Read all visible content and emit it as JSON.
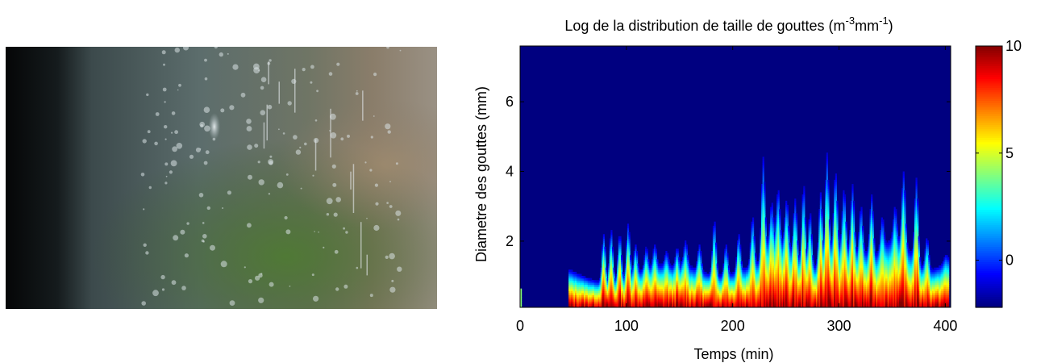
{
  "photo": {
    "subject": "rain-window-photo"
  },
  "chart_data": {
    "type": "heatmap",
    "title": "Log de la distribution de taille de gouttes (m",
    "title_sup1": "-3",
    "title_mid": "mm",
    "title_sup2": "-1",
    "title_end": ")",
    "xlabel": "Temps (min)",
    "ylabel": "Diametre des gouttes (mm)",
    "xlim": [
      0,
      405
    ],
    "ylim": [
      0.1,
      7.6
    ],
    "xticks": [
      0,
      100,
      200,
      300,
      400
    ],
    "yticks": [
      2,
      4,
      6
    ],
    "colorbar": {
      "min": -2.2,
      "max": 10,
      "ticks": [
        0,
        5,
        10
      ],
      "colormap": "jet"
    },
    "background_value": -2.2,
    "rain_start_min": 45,
    "rain_end_min": 403,
    "spikes": [
      {
        "x": 78,
        "d": 2.2
      },
      {
        "x": 85,
        "d": 2.3
      },
      {
        "x": 93,
        "d": 2.2
      },
      {
        "x": 101,
        "d": 2.5
      },
      {
        "x": 108,
        "d": 1.9
      },
      {
        "x": 118,
        "d": 1.8
      },
      {
        "x": 126,
        "d": 1.9
      },
      {
        "x": 137,
        "d": 1.7
      },
      {
        "x": 147,
        "d": 1.8
      },
      {
        "x": 155,
        "d": 2.0
      },
      {
        "x": 168,
        "d": 1.9
      },
      {
        "x": 182,
        "d": 2.6
      },
      {
        "x": 193,
        "d": 1.9
      },
      {
        "x": 205,
        "d": 2.2
      },
      {
        "x": 218,
        "d": 2.7
      },
      {
        "x": 228,
        "d": 4.4
      },
      {
        "x": 236,
        "d": 3.1
      },
      {
        "x": 242,
        "d": 3.5
      },
      {
        "x": 250,
        "d": 3.2
      },
      {
        "x": 258,
        "d": 3.2
      },
      {
        "x": 266,
        "d": 3.6
      },
      {
        "x": 272,
        "d": 2.8
      },
      {
        "x": 282,
        "d": 3.4
      },
      {
        "x": 288,
        "d": 4.5
      },
      {
        "x": 296,
        "d": 4.0
      },
      {
        "x": 304,
        "d": 3.5
      },
      {
        "x": 312,
        "d": 3.6
      },
      {
        "x": 320,
        "d": 3.0
      },
      {
        "x": 330,
        "d": 3.3
      },
      {
        "x": 340,
        "d": 2.7
      },
      {
        "x": 352,
        "d": 3.0
      },
      {
        "x": 360,
        "d": 4.0
      },
      {
        "x": 372,
        "d": 3.8
      },
      {
        "x": 382,
        "d": 2.1
      },
      {
        "x": 393,
        "d": 1.2
      },
      {
        "x": 400,
        "d": 1.6
      }
    ]
  }
}
